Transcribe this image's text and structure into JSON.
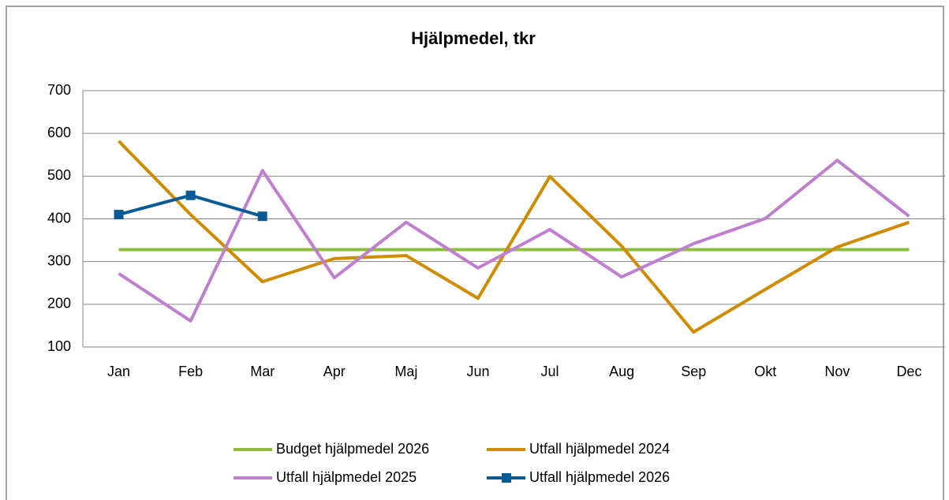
{
  "chart_data": {
    "type": "line",
    "title": "Hjälpmedel, tkr",
    "categories": [
      "Jan",
      "Feb",
      "Mar",
      "Apr",
      "Maj",
      "Jun",
      "Jul",
      "Aug",
      "Sep",
      "Okt",
      "Nov",
      "Dec"
    ],
    "ylim": [
      100,
      700
    ],
    "yticks": [
      100,
      200,
      300,
      400,
      500,
      600,
      700
    ],
    "grid": true,
    "legend": "bottom",
    "series": [
      {
        "name": "Budget hjälpmedel 2026",
        "color": "#8fbc3f",
        "values": [
          328,
          328,
          328,
          328,
          328,
          328,
          328,
          328,
          328,
          328,
          328,
          328
        ]
      },
      {
        "name": "Utfall hjälpmedel 2024",
        "color": "#d08c00",
        "values": [
          582,
          410,
          253,
          307,
          314,
          214,
          499,
          336,
          135,
          235,
          334,
          392
        ]
      },
      {
        "name": "Utfall hjälpmedel 2025",
        "color": "#bf7fcf",
        "values": [
          272,
          161,
          513,
          262,
          392,
          285,
          375,
          264,
          342,
          401,
          537,
          406
        ]
      },
      {
        "name": "Utfall hjälpmedel 2026",
        "color": "#0a5a96",
        "marker": "square",
        "values": [
          410,
          455,
          406,
          null,
          null,
          null,
          null,
          null,
          null,
          null,
          null,
          null
        ]
      }
    ]
  }
}
